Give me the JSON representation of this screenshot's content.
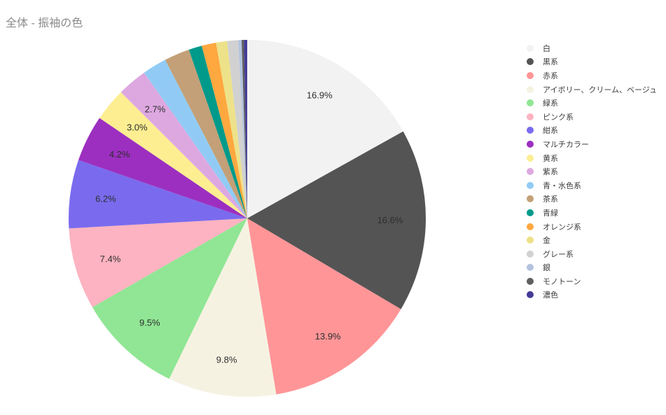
{
  "chart_data": {
    "type": "pie",
    "title": "全体 - 振袖の色",
    "legend_position": "right",
    "start_angle": "top",
    "direction": "clockwise",
    "label_format": "percent-inside",
    "background": "#ffffff",
    "slices": [
      {
        "label": "白",
        "value": 16.9,
        "color": "#f2f2f2",
        "show_label": true
      },
      {
        "label": "黒系",
        "value": 16.6,
        "color": "#545454",
        "show_label": true
      },
      {
        "label": "赤系",
        "value": 13.9,
        "color": "#ff9597",
        "show_label": true
      },
      {
        "label": "アイボリー、クリーム、ベージュ",
        "value": 9.8,
        "color": "#f6f2e2",
        "show_label": true
      },
      {
        "label": "緑系",
        "value": 9.5,
        "color": "#90e694",
        "show_label": true
      },
      {
        "label": "ピンク系",
        "value": 7.4,
        "color": "#fdb3c1",
        "show_label": true
      },
      {
        "label": "紺系",
        "value": 6.2,
        "color": "#7a6bee",
        "show_label": true
      },
      {
        "label": "マルチカラー",
        "value": 4.2,
        "color": "#9c2fc0",
        "show_label": true
      },
      {
        "label": "黄系",
        "value": 3.0,
        "color": "#fdee92",
        "show_label": true
      },
      {
        "label": "紫系",
        "value": 2.7,
        "color": "#dda8e0",
        "show_label": true
      },
      {
        "label": "青・水色系",
        "value": 2.2,
        "color": "#91cbf5",
        "show_label": false
      },
      {
        "label": "茶系",
        "value": 2.3,
        "color": "#c3a077",
        "show_label": false
      },
      {
        "label": "青緑",
        "value": 1.2,
        "color": "#009a8a",
        "show_label": false
      },
      {
        "label": "オレンジ系",
        "value": 1.3,
        "color": "#fea83f",
        "show_label": false
      },
      {
        "label": "金",
        "value": 1.0,
        "color": "#ede289",
        "show_label": false
      },
      {
        "label": "グレー系",
        "value": 1.0,
        "color": "#d1d1d1",
        "show_label": false
      },
      {
        "label": "銀",
        "value": 0.3,
        "color": "#b3c3df",
        "show_label": false
      },
      {
        "label": "モノトーン",
        "value": 0.2,
        "color": "#5f5f5f",
        "show_label": false
      },
      {
        "label": "濃色",
        "value": 0.3,
        "color": "#443c96",
        "show_label": false
      }
    ]
  }
}
